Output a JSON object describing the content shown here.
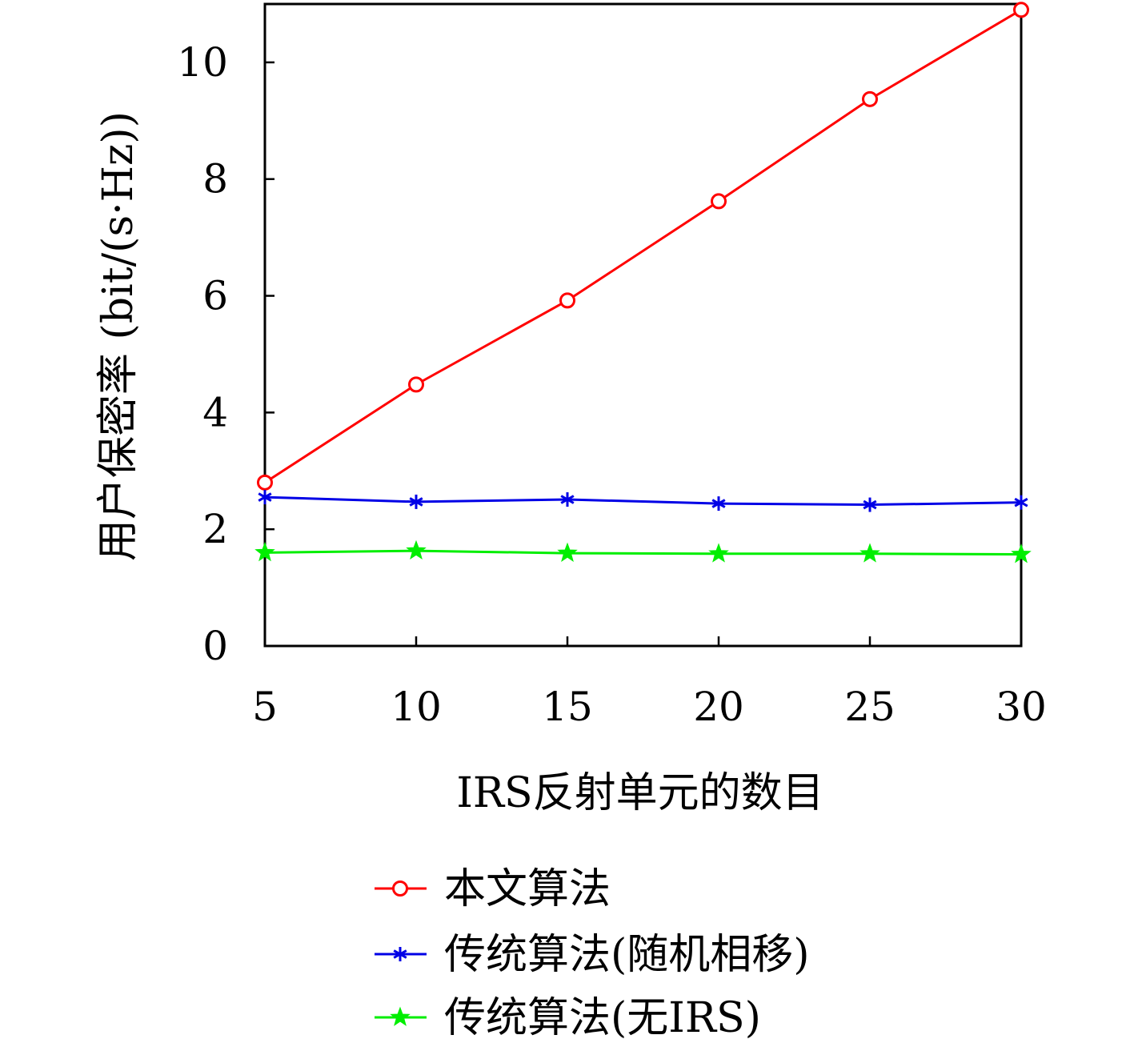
{
  "chart_data": {
    "type": "line",
    "title": "",
    "xlabel": "IRS反射单元的数目",
    "ylabel": "用户保密率 (bit/(s·Hz))",
    "x": [
      5,
      10,
      15,
      20,
      25,
      30
    ],
    "xticks": [
      5,
      10,
      15,
      20,
      25,
      30
    ],
    "yticks": [
      0,
      2,
      4,
      6,
      8,
      10
    ],
    "xlim": [
      5,
      30
    ],
    "ylim": [
      0,
      11
    ],
    "grid": false,
    "legend_position": "bottom",
    "series": [
      {
        "name": "本文算法",
        "color": "#ff0000",
        "marker": "circle",
        "values": [
          2.8,
          4.48,
          5.92,
          7.62,
          9.37,
          10.9
        ]
      },
      {
        "name": "传统算法(随机相移)",
        "color": "#0000e6",
        "marker": "asterisk",
        "values": [
          2.55,
          2.47,
          2.51,
          2.44,
          2.42,
          2.46
        ]
      },
      {
        "name": "传统算法(无IRS)",
        "color": "#00ee00",
        "marker": "star",
        "values": [
          1.6,
          1.63,
          1.59,
          1.58,
          1.58,
          1.57
        ]
      }
    ]
  }
}
